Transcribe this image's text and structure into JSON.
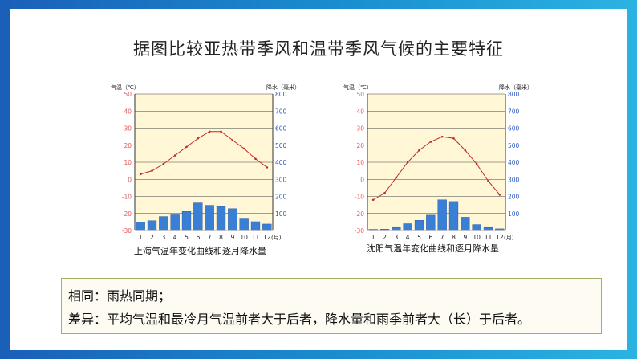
{
  "slide": {
    "title": "据图比较亚热带季风和温带季风气候的主要特征",
    "summary": {
      "line1": "相同：雨热同期；",
      "line2": "差异：平均气温和最冷月气温前者大于后者，降水量和雨季前者大（长）于后者。"
    }
  },
  "colors": {
    "temp_line": "#c0282a",
    "bars": "#3a7fd6",
    "axis_left": "#e05a5a",
    "axis_right": "#2b59c3"
  },
  "chart_data": [
    {
      "type": "bar+line",
      "caption": "上海气温年变化曲线和逐月降水量",
      "left_axis_label": "气温（℃）",
      "right_axis_label": "降水（毫米）",
      "temp_ylim": [
        -30,
        50
      ],
      "temp_ticks": [
        50,
        40,
        30,
        20,
        10,
        0,
        -10,
        -20,
        -30
      ],
      "precip_ylim": [
        0,
        800
      ],
      "precip_ticks": [
        800,
        700,
        600,
        500,
        400,
        300,
        200,
        100
      ],
      "x_ticks": [
        "1",
        "2",
        "3",
        "4",
        "5",
        "6",
        "7",
        "8",
        "9",
        "10",
        "11",
        "12"
      ],
      "x_unit": "(月)",
      "temperature": [
        3,
        5,
        9,
        14,
        19,
        24,
        28,
        28,
        23,
        18,
        12,
        7
      ],
      "precipitation": [
        48,
        58,
        82,
        92,
        112,
        162,
        148,
        140,
        128,
        68,
        52,
        38
      ]
    },
    {
      "type": "bar+line",
      "caption": "沈阳气温年变化曲线和逐月降水量",
      "left_axis_label": "气温（℃）",
      "right_axis_label": "降水（毫米）",
      "temp_ylim": [
        -30,
        50
      ],
      "temp_ticks": [
        50,
        40,
        30,
        20,
        10,
        0,
        -10,
        -20,
        -30
      ],
      "precip_ylim": [
        0,
        800
      ],
      "precip_ticks": [
        800,
        700,
        600,
        500,
        400,
        300,
        200,
        100
      ],
      "x_ticks": [
        "1",
        "2",
        "3",
        "4",
        "5",
        "6",
        "7",
        "8",
        "9",
        "10",
        "11",
        "12"
      ],
      "x_unit": "(月)",
      "temperature": [
        -12,
        -8,
        1,
        10,
        17,
        22,
        25,
        24,
        17,
        9,
        -1,
        -9
      ],
      "precipitation": [
        7,
        8,
        18,
        40,
        60,
        90,
        180,
        170,
        78,
        35,
        18,
        10
      ]
    }
  ]
}
